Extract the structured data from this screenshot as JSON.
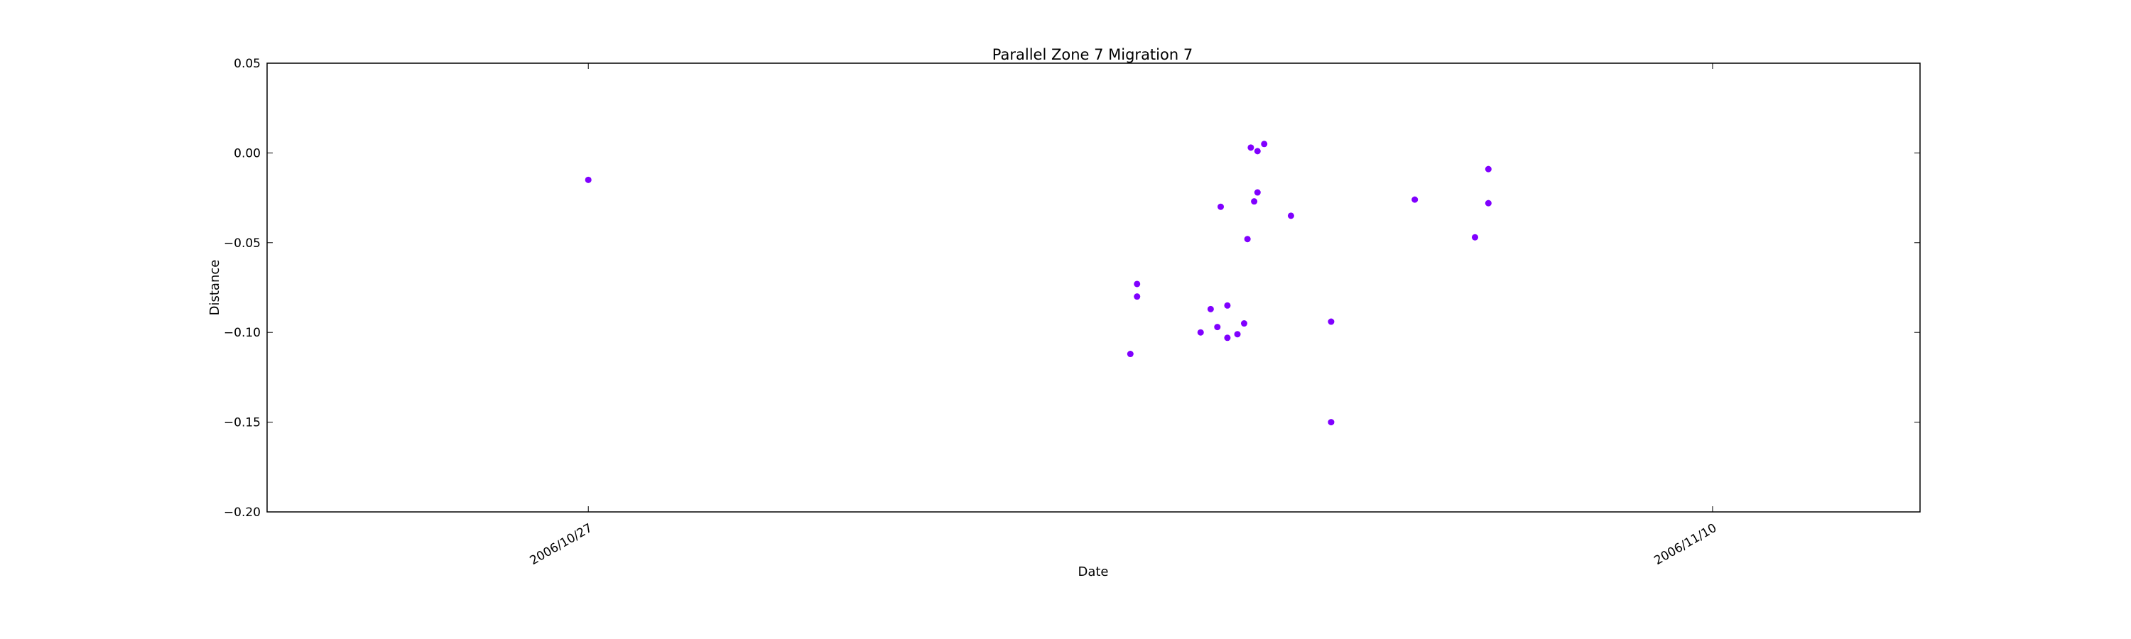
{
  "chart_data": {
    "type": "scatter",
    "title": "Parallel Zone 7 Migration 7",
    "xlabel": "Date",
    "ylabel": "Distance",
    "xlim": [
      "2006-10-23",
      "2006-11-12 14:00"
    ],
    "ylim": [
      -0.2,
      0.05
    ],
    "grid": false,
    "marker_color": "#8000ff",
    "yticks": [
      {
        "value": 0.05,
        "label": "0.05"
      },
      {
        "value": 0.0,
        "label": "0.00"
      },
      {
        "value": -0.05,
        "label": "−0.05"
      },
      {
        "value": -0.1,
        "label": "−0.10"
      },
      {
        "value": -0.15,
        "label": "−0.15"
      },
      {
        "value": -0.2,
        "label": "−0.20"
      }
    ],
    "xticks": [
      {
        "value": "2006-10-27",
        "label": "2006/10/27"
      },
      {
        "value": "2006-11-10",
        "label": "2006/11/10"
      }
    ],
    "points": [
      {
        "x": "2006-10-27 00:00",
        "y": -0.015
      },
      {
        "x": "2006-11-02 18:00",
        "y": -0.112
      },
      {
        "x": "2006-11-02 20:00",
        "y": -0.073
      },
      {
        "x": "2006-11-02 20:00",
        "y": -0.08
      },
      {
        "x": "2006-11-03 15:00",
        "y": -0.1
      },
      {
        "x": "2006-11-03 18:00",
        "y": -0.087
      },
      {
        "x": "2006-11-03 20:00",
        "y": -0.097
      },
      {
        "x": "2006-11-03 21:00",
        "y": -0.03
      },
      {
        "x": "2006-11-03 23:00",
        "y": -0.085
      },
      {
        "x": "2006-11-03 23:00",
        "y": -0.103
      },
      {
        "x": "2006-11-04 02:00",
        "y": -0.101
      },
      {
        "x": "2006-11-04 04:00",
        "y": -0.095
      },
      {
        "x": "2006-11-04 05:00",
        "y": -0.048
      },
      {
        "x": "2006-11-04 06:00",
        "y": 0.003
      },
      {
        "x": "2006-11-04 07:00",
        "y": -0.027
      },
      {
        "x": "2006-11-04 08:00",
        "y": -0.022
      },
      {
        "x": "2006-11-04 08:00",
        "y": 0.001
      },
      {
        "x": "2006-11-04 10:00",
        "y": 0.005
      },
      {
        "x": "2006-11-04 18:00",
        "y": -0.035
      },
      {
        "x": "2006-11-05 06:00",
        "y": -0.094
      },
      {
        "x": "2006-11-05 06:00",
        "y": -0.15
      },
      {
        "x": "2006-11-06 07:00",
        "y": -0.026
      },
      {
        "x": "2006-11-07 01:00",
        "y": -0.047
      },
      {
        "x": "2006-11-07 05:00",
        "y": -0.009
      },
      {
        "x": "2006-11-07 05:00",
        "y": -0.028
      }
    ]
  }
}
